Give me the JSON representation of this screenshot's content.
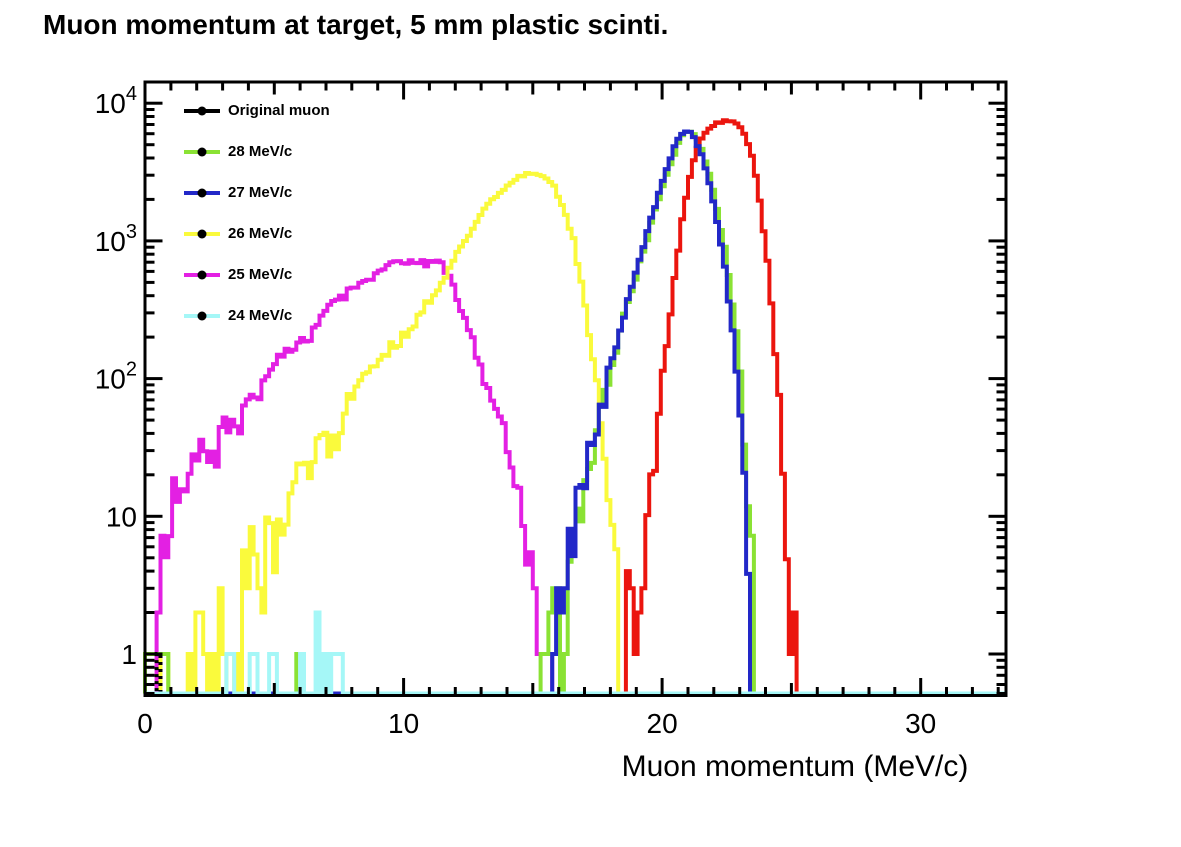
{
  "title": "Muon momentum at target, 5 mm plastic scinti.",
  "chart_data": {
    "type": "line",
    "subtype": "step-histogram",
    "title": "Muon momentum at target, 5 mm plastic scinti.",
    "xlabel": "Muon momentum (MeV/c)",
    "ylabel": "",
    "xlim": [
      0,
      33.3
    ],
    "ylim": [
      0.5,
      14000
    ],
    "yscale": "log",
    "grid": false,
    "bin_width": 0.15,
    "x_major_ticks": [
      0,
      10,
      20,
      30
    ],
    "y_major_ticks": [
      1,
      10,
      100,
      1000,
      10000
    ],
    "y_tick_labels": [
      "1",
      "10",
      "10^2",
      "10^3",
      "10^4"
    ],
    "legend_position": "top-left",
    "legend": [
      {
        "label": "Original muon",
        "color": "#000000"
      },
      {
        "label": "28 MeV/c",
        "color": "#8ae234"
      },
      {
        "label": "27 MeV/c",
        "color": "#2228c8"
      },
      {
        "label": "26 MeV/c",
        "color": "#fafa3c"
      },
      {
        "label": "25 MeV/c",
        "color": "#e320e3"
      },
      {
        "label": "24 MeV/c",
        "color": "#a5f7f7"
      }
    ],
    "series": [
      {
        "name": "25 MeV/c",
        "color": "#e320e3",
        "style": "solid",
        "anchors": [
          [
            0.45,
            1
          ],
          [
            0.5,
            3.9
          ],
          [
            0.6,
            1
          ],
          [
            0.7,
            6.7
          ],
          [
            0.9,
            4.5
          ],
          [
            1.0,
            12
          ],
          [
            1.3,
            14
          ],
          [
            1.5,
            15.5
          ],
          [
            1.9,
            30
          ],
          [
            2.2,
            28
          ],
          [
            2.6,
            29
          ],
          [
            2.75,
            22
          ],
          [
            3.0,
            50
          ],
          [
            3.3,
            45
          ],
          [
            3.6,
            44
          ],
          [
            3.8,
            64
          ],
          [
            4.1,
            70
          ],
          [
            4.5,
            83
          ],
          [
            5.0,
            130
          ],
          [
            5.5,
            161
          ],
          [
            6.0,
            182
          ],
          [
            6.6,
            237
          ],
          [
            7.1,
            316
          ],
          [
            7.6,
            374
          ],
          [
            8.1,
            467
          ],
          [
            8.6,
            525
          ],
          [
            9.1,
            620
          ],
          [
            9.5,
            680
          ],
          [
            10.0,
            700
          ],
          [
            10.4,
            710
          ],
          [
            10.8,
            695
          ],
          [
            11.2,
            700
          ],
          [
            11.5,
            640
          ],
          [
            11.8,
            525
          ],
          [
            12.1,
            374
          ],
          [
            12.5,
            237
          ],
          [
            12.9,
            137
          ],
          [
            13.3,
            83
          ],
          [
            13.7,
            48
          ],
          [
            14.1,
            27
          ],
          [
            14.5,
            12.5
          ],
          [
            14.7,
            6.7
          ],
          [
            14.85,
            4.1
          ],
          [
            15.0,
            8
          ],
          [
            15.1,
            2
          ]
        ],
        "spikes": [
          [
            15.1,
            15.7,
            1
          ]
        ]
      },
      {
        "name": "26 MeV/c",
        "color": "#fafa3c",
        "style": "solid",
        "anchors": [
          [
            3.7,
            4.1
          ],
          [
            4.2,
            5.0
          ],
          [
            4.6,
            2.9
          ],
          [
            4.8,
            9.4
          ],
          [
            5.1,
            6.4
          ],
          [
            5.5,
            11.7
          ],
          [
            5.9,
            24
          ],
          [
            6.3,
            17.5
          ],
          [
            6.8,
            44
          ],
          [
            7.2,
            29
          ],
          [
            7.6,
            45
          ],
          [
            7.8,
            66
          ],
          [
            8.6,
            110
          ],
          [
            9.2,
            135
          ],
          [
            9.7,
            170
          ],
          [
            10.2,
            215
          ],
          [
            10.7,
            300
          ],
          [
            11.2,
            400
          ],
          [
            11.7,
            565
          ],
          [
            12.1,
            857
          ],
          [
            12.5,
            1100
          ],
          [
            13.1,
            1680
          ],
          [
            13.7,
            2240
          ],
          [
            14.3,
            2780
          ],
          [
            14.7,
            3050
          ],
          [
            15.1,
            3100
          ],
          [
            15.4,
            2900
          ],
          [
            15.8,
            2560
          ],
          [
            16.2,
            1680
          ],
          [
            16.6,
            940
          ],
          [
            17.0,
            370
          ],
          [
            17.4,
            115
          ],
          [
            17.8,
            30
          ],
          [
            18.0,
            9.4
          ],
          [
            18.2,
            3.2
          ],
          [
            18.35,
            1
          ]
        ],
        "spikes": [
          [
            0.55,
            0.95,
            1
          ],
          [
            1.65,
            1.85,
            1
          ],
          [
            2.0,
            2.2,
            2
          ],
          [
            2.2,
            2.4,
            1
          ],
          [
            2.5,
            2.65,
            1
          ],
          [
            2.8,
            2.95,
            3
          ],
          [
            3.05,
            3.2,
            1
          ],
          [
            3.4,
            3.55,
            1
          ]
        ]
      },
      {
        "name": "28 MeV/c",
        "color": "#8ae234",
        "style": "solid",
        "anchors": [
          [
            15.3,
            1
          ],
          [
            15.45,
            2
          ],
          [
            15.6,
            1
          ],
          [
            15.9,
            2
          ],
          [
            16.2,
            1
          ],
          [
            16.4,
            4
          ],
          [
            16.6,
            7
          ],
          [
            16.9,
            13
          ],
          [
            17.1,
            20
          ],
          [
            17.3,
            30
          ],
          [
            17.5,
            45
          ],
          [
            17.7,
            65
          ],
          [
            18.0,
            105
          ],
          [
            18.2,
            150
          ],
          [
            18.4,
            220
          ],
          [
            18.6,
            310
          ],
          [
            18.8,
            420
          ],
          [
            19.0,
            560
          ],
          [
            19.2,
            760
          ],
          [
            19.4,
            1020
          ],
          [
            19.6,
            1380
          ],
          [
            19.8,
            1850
          ],
          [
            20.0,
            2400
          ],
          [
            20.2,
            3100
          ],
          [
            20.4,
            4000
          ],
          [
            20.6,
            5000
          ],
          [
            20.8,
            5900
          ],
          [
            21.0,
            6400
          ],
          [
            21.2,
            6000
          ],
          [
            21.4,
            5300
          ],
          [
            21.6,
            4300
          ],
          [
            21.8,
            3200
          ],
          [
            22.0,
            2250
          ],
          [
            22.2,
            1480
          ],
          [
            22.4,
            920
          ],
          [
            22.6,
            530
          ],
          [
            22.8,
            290
          ],
          [
            23.0,
            140
          ],
          [
            23.1,
            70
          ],
          [
            23.2,
            30
          ],
          [
            23.3,
            12
          ],
          [
            23.4,
            4
          ],
          [
            23.5,
            2
          ],
          [
            23.55,
            1
          ]
        ],
        "spikes": [
          [
            0.0,
            0.45,
            1
          ],
          [
            0.5,
            0.9,
            1
          ],
          [
            5.85,
            6.1,
            1
          ]
        ]
      },
      {
        "name": "Original muon",
        "color": "#000000",
        "style": "dashed",
        "anchors": [],
        "spikes": [
          [
            0.42,
            0.57,
            1
          ]
        ]
      },
      {
        "name": "red (no legend entry)",
        "color": "#eb150e",
        "style": "solid",
        "anchors": [
          [
            19.2,
            1
          ],
          [
            19.35,
            4
          ],
          [
            19.5,
            10
          ],
          [
            19.65,
            20
          ],
          [
            19.8,
            45
          ],
          [
            20.0,
            95
          ],
          [
            20.2,
            200
          ],
          [
            20.4,
            400
          ],
          [
            20.6,
            800
          ],
          [
            20.8,
            1500
          ],
          [
            21.0,
            2500
          ],
          [
            21.2,
            3700
          ],
          [
            21.4,
            4900
          ],
          [
            21.6,
            5900
          ],
          [
            21.8,
            6600
          ],
          [
            22.0,
            7000
          ],
          [
            22.2,
            7200
          ],
          [
            22.45,
            7450
          ],
          [
            22.7,
            7350
          ],
          [
            22.9,
            7100
          ],
          [
            23.1,
            6400
          ],
          [
            23.3,
            5300
          ],
          [
            23.5,
            3900
          ],
          [
            23.7,
            2500
          ],
          [
            23.9,
            1300
          ],
          [
            24.1,
            600
          ],
          [
            24.3,
            230
          ],
          [
            24.5,
            80
          ],
          [
            24.65,
            25
          ],
          [
            24.8,
            7
          ],
          [
            24.9,
            2.5
          ],
          [
            25.0,
            1
          ],
          [
            25.25,
            1
          ]
        ],
        "spikes": [
          [
            18.55,
            18.7,
            4
          ],
          [
            18.7,
            18.85,
            3
          ],
          [
            18.85,
            19.0,
            1
          ],
          [
            19.0,
            19.15,
            2
          ]
        ]
      },
      {
        "name": "27 MeV/c",
        "color": "#2228c8",
        "style": "solid",
        "anchors": [
          [
            15.8,
            2
          ],
          [
            15.95,
            1
          ],
          [
            16.1,
            2
          ],
          [
            16.25,
            3.5
          ],
          [
            16.5,
            6
          ],
          [
            16.8,
            12
          ],
          [
            17.0,
            18
          ],
          [
            17.2,
            28
          ],
          [
            17.4,
            40
          ],
          [
            17.6,
            58
          ],
          [
            17.9,
            95
          ],
          [
            18.1,
            140
          ],
          [
            18.3,
            200
          ],
          [
            18.5,
            280
          ],
          [
            18.7,
            380
          ],
          [
            18.9,
            520
          ],
          [
            19.1,
            700
          ],
          [
            19.3,
            950
          ],
          [
            19.5,
            1300
          ],
          [
            19.7,
            1750
          ],
          [
            19.9,
            2300
          ],
          [
            20.1,
            3000
          ],
          [
            20.3,
            3900
          ],
          [
            20.5,
            4900
          ],
          [
            20.7,
            5800
          ],
          [
            20.9,
            6400
          ],
          [
            21.1,
            6100
          ],
          [
            21.3,
            5400
          ],
          [
            21.5,
            4400
          ],
          [
            21.7,
            3300
          ],
          [
            21.9,
            2300
          ],
          [
            22.1,
            1500
          ],
          [
            22.3,
            900
          ],
          [
            22.5,
            500
          ],
          [
            22.7,
            260
          ],
          [
            22.9,
            120
          ],
          [
            23.05,
            50
          ],
          [
            23.15,
            20
          ],
          [
            23.25,
            8
          ],
          [
            23.35,
            2
          ],
          [
            23.45,
            2
          ]
        ],
        "spikes": []
      },
      {
        "name": "24 MeV/c",
        "color": "#a5f7f7",
        "style": "solid",
        "anchors": [],
        "spikes": [
          [
            3.2,
            3.5,
            1
          ],
          [
            4.1,
            4.3,
            1
          ],
          [
            4.8,
            5.1,
            1
          ],
          [
            6.0,
            6.2,
            1
          ],
          [
            6.55,
            6.75,
            2
          ],
          [
            6.9,
            7.1,
            1
          ],
          [
            7.25,
            7.45,
            1
          ],
          [
            7.55,
            7.7,
            1
          ]
        ]
      }
    ]
  }
}
